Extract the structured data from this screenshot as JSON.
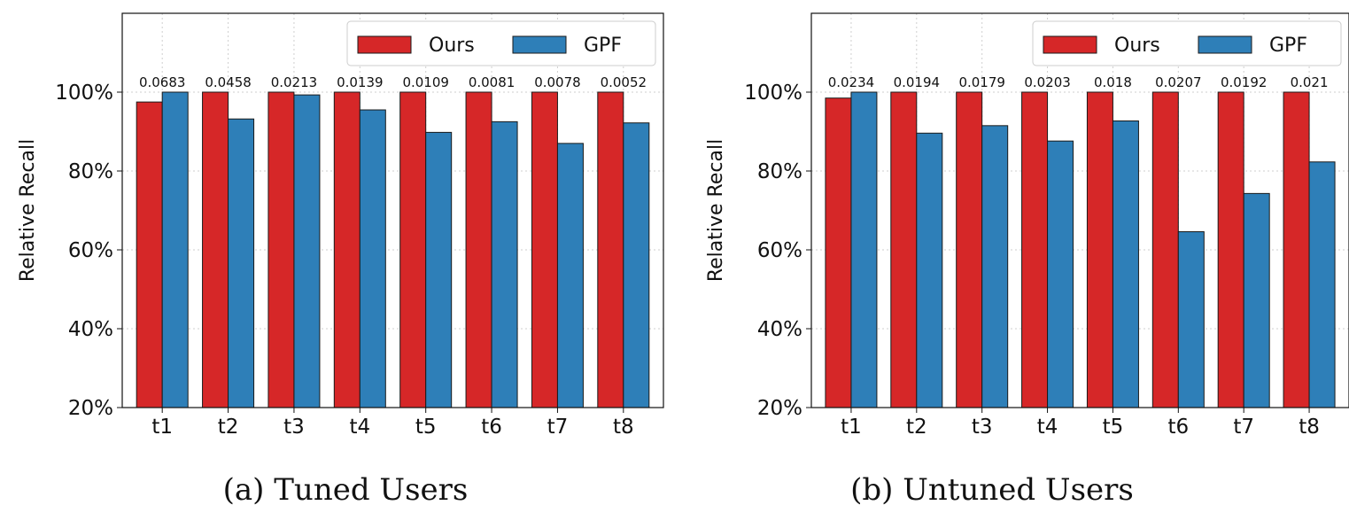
{
  "chart_data": [
    {
      "type": "bar",
      "caption": "(a)  Tuned Users",
      "ylabel": "Relative Recall",
      "categories": [
        "t1",
        "t2",
        "t3",
        "t4",
        "t5",
        "t6",
        "t7",
        "t8"
      ],
      "ylim": [
        20,
        120
      ],
      "yticks": [
        "20%",
        "40%",
        "60%",
        "80%",
        "100%"
      ],
      "grid": true,
      "legend_position": "top-right",
      "series": [
        {
          "name": "Ours",
          "color": "#d62728",
          "values": [
            97.5,
            100,
            100,
            100,
            100,
            100,
            100,
            100
          ]
        },
        {
          "name": "GPF",
          "color": "#2e7fb8",
          "values": [
            100,
            93.2,
            99.3,
            95.5,
            89.8,
            92.5,
            87.0,
            92.2
          ]
        }
      ],
      "data_labels": [
        "0.0683",
        "0.0458",
        "0.0213",
        "0.0139",
        "0.0109",
        "0.0081",
        "0.0078",
        "0.0052"
      ]
    },
    {
      "type": "bar",
      "caption": "(b)  Untuned Users",
      "ylabel": "Relative Recall",
      "categories": [
        "t1",
        "t2",
        "t3",
        "t4",
        "t5",
        "t6",
        "t7",
        "t8"
      ],
      "ylim": [
        20,
        120
      ],
      "yticks": [
        "20%",
        "40%",
        "60%",
        "80%",
        "100%"
      ],
      "grid": true,
      "legend_position": "top-right",
      "series": [
        {
          "name": "Ours",
          "color": "#d62728",
          "values": [
            98.5,
            100,
            100,
            100,
            100,
            100,
            100,
            100
          ]
        },
        {
          "name": "GPF",
          "color": "#2e7fb8",
          "values": [
            100,
            89.6,
            91.5,
            87.6,
            92.7,
            64.6,
            74.3,
            82.3
          ]
        }
      ],
      "data_labels": [
        "0.0234",
        "0.0194",
        "0.0179",
        "0.0203",
        "0.018",
        "0.0207",
        "0.0192",
        "0.021"
      ]
    }
  ]
}
